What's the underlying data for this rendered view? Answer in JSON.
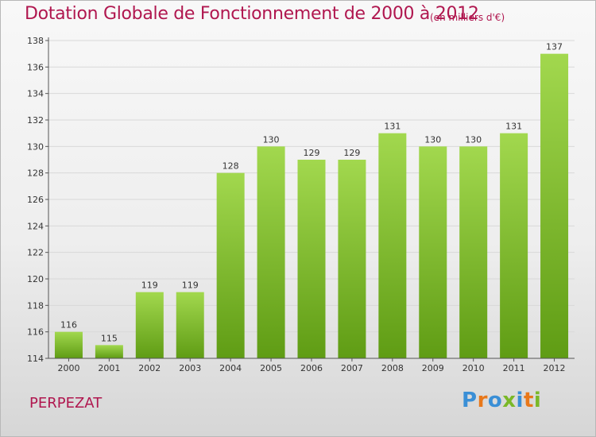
{
  "header": {
    "title": "Dotation Globale de Fonctionnement de 2000 à 2012",
    "subtitle": "(en milliers d'€)"
  },
  "footer": {
    "commune": "PERPEZAT",
    "brand": "Proxiti"
  },
  "colors": {
    "title": "#b0174f",
    "bar_light": "#a2d84e",
    "bar_dark": "#5f9c14",
    "grid": "#d8d8d8",
    "axis": "#555555",
    "brand_letters": [
      "#3a8fd6",
      "#e8781a",
      "#3a8fd6",
      "#7ab828",
      "#3a8fd6",
      "#e8781a",
      "#7ab828"
    ]
  },
  "chart_data": {
    "type": "bar",
    "title": "Dotation Globale de Fonctionnement de 2000 à 2012",
    "subtitle": "(en milliers d'€)",
    "xlabel": "",
    "ylabel": "",
    "categories": [
      "2000",
      "2001",
      "2002",
      "2003",
      "2004",
      "2005",
      "2006",
      "2007",
      "2008",
      "2009",
      "2010",
      "2011",
      "2012"
    ],
    "values": [
      116,
      115,
      119,
      119,
      128,
      130,
      129,
      129,
      131,
      130,
      130,
      131,
      137
    ],
    "ylim": [
      114,
      138
    ],
    "yticks": [
      114,
      116,
      118,
      120,
      122,
      124,
      126,
      128,
      130,
      132,
      134,
      136,
      138
    ],
    "grid": true,
    "data_labels": true,
    "legend": "none"
  }
}
